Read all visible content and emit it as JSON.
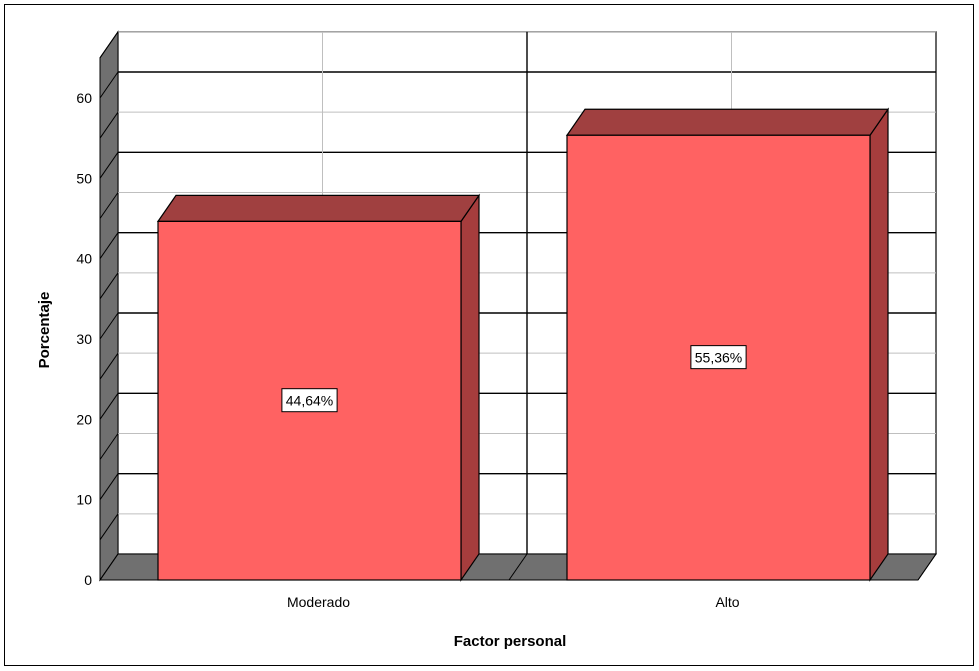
{
  "chart_data": {
    "type": "bar",
    "style": "3d",
    "categories": [
      "Moderado",
      "Alto"
    ],
    "values": [
      44.64,
      55.36
    ],
    "data_labels": [
      "44,64%",
      "55,36%"
    ],
    "xlabel": "Factor personal",
    "ylabel": "Porcentaje",
    "ylim": [
      0,
      65
    ],
    "yticks": [
      0,
      10,
      20,
      30,
      40,
      50,
      60
    ],
    "grid": true,
    "legend": "none",
    "colors": {
      "bar_front": "#ff6262",
      "bar_side": "#a63d3d",
      "bar_top": "#a04040",
      "floor": "#707070",
      "left_wall": "#707070",
      "grid": "#000000",
      "grid_minor": "#bfbfbf"
    }
  }
}
